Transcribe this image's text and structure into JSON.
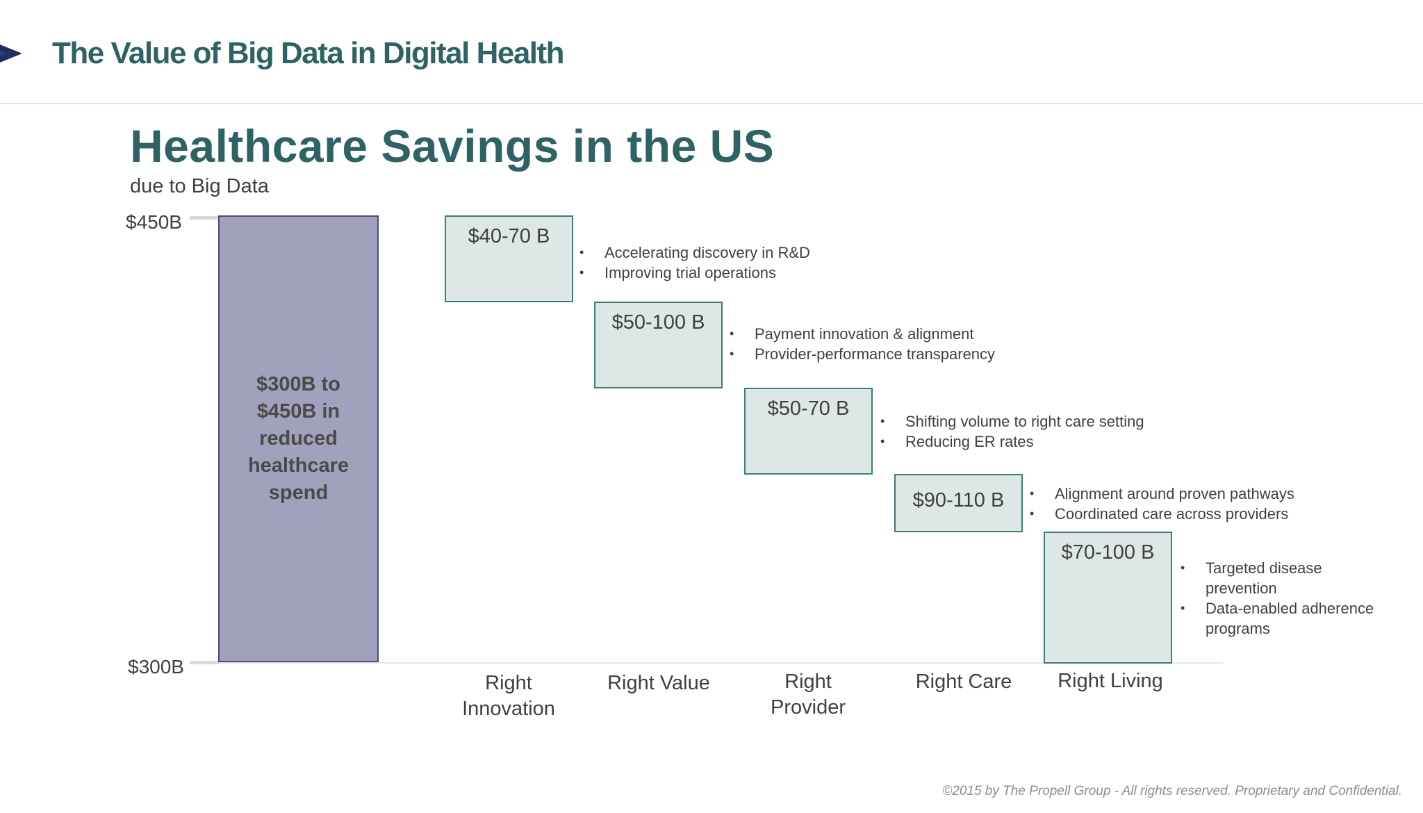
{
  "header": {
    "title": "The Value of Big Data in Digital Health"
  },
  "logo": {
    "icon": "chevron-right-icon",
    "color": "#1f2f5e"
  },
  "colors": {
    "title": "#2e6264",
    "total_bar": "#a1a0bd",
    "segment_fill": "#dce7e6",
    "segment_border": "#3d7c7a"
  },
  "chart_data": {
    "type": "bar",
    "title": "Healthcare Savings in the US",
    "subtitle": "due to Big Data",
    "y_axis": {
      "ticks": [
        "$450B",
        "$300B"
      ],
      "range": [
        300,
        450
      ],
      "unit": "$B"
    },
    "total": {
      "label": "$300B to $450B in reduced healthcare spend",
      "range": [
        300,
        450
      ]
    },
    "categories": [
      "Right Innovation",
      "Right Value",
      "Right Provider",
      "Right Care",
      "Right Living"
    ],
    "segments": [
      {
        "category": "Right Innovation",
        "label": "$40-70 B",
        "range": [
          40,
          70
        ],
        "bullets": [
          "Accelerating discovery  in R&D",
          "Improving trial operations"
        ]
      },
      {
        "category": "Right Value",
        "label": "$50-100 B",
        "range": [
          50,
          100
        ],
        "bullets": [
          "Payment innovation & alignment",
          "Provider-performance transparency"
        ]
      },
      {
        "category": "Right Provider",
        "label": "$50-70 B",
        "range": [
          50,
          70
        ],
        "bullets": [
          "Shifting volume to right care setting",
          "Reducing ER rates"
        ]
      },
      {
        "category": "Right Care",
        "label": "$90-110 B",
        "range": [
          90,
          110
        ],
        "bullets": [
          "Alignment around proven pathways",
          "Coordinated care across providers"
        ]
      },
      {
        "category": "Right Living",
        "label": "$70-100 B",
        "range": [
          70,
          100
        ],
        "bullets": [
          "Targeted disease prevention",
          "Data-enabled adherence programs"
        ]
      }
    ]
  },
  "footer": {
    "text": "©2015 by The Propell Group -  All rights reserved. Proprietary and Confidential."
  }
}
